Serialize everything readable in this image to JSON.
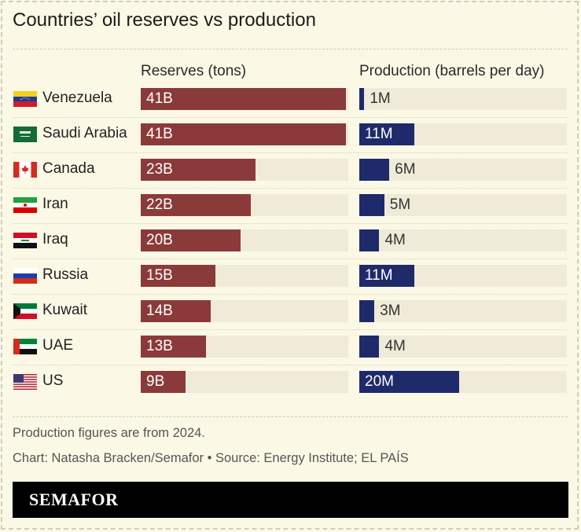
{
  "chart_data": {
    "type": "bar",
    "title": "Countries’ oil reserves vs production",
    "categories": [
      "Venezuela",
      "Saudi Arabia",
      "Canada",
      "Iran",
      "Iraq",
      "Russia",
      "Kuwait",
      "UAE",
      "US"
    ],
    "series": [
      {
        "name": "Reserves (tons)",
        "values": [
          41,
          41,
          23,
          22,
          20,
          15,
          14,
          13,
          9
        ],
        "labels": [
          "41B",
          "41B",
          "23B",
          "22B",
          "20B",
          "15B",
          "14B",
          "13B",
          "9B"
        ],
        "color": "#8b3a3a",
        "unit": "B",
        "xlim": [
          0,
          41.5
        ]
      },
      {
        "name": "Production (barrels per day)",
        "values": [
          1,
          11,
          6,
          5,
          4,
          11,
          3,
          4,
          20
        ],
        "labels": [
          "1M",
          "11M",
          "6M",
          "5M",
          "4M",
          "11M",
          "3M",
          "4M",
          "20M"
        ],
        "color": "#1f2a6b",
        "unit": "M",
        "xlim": [
          0,
          41.5
        ]
      }
    ],
    "flags": [
      "venezuela",
      "saudi-arabia",
      "canada",
      "iran",
      "iraq",
      "russia",
      "kuwait",
      "uae",
      "us"
    ],
    "grid": false
  },
  "footer": {
    "note": "Production figures are from 2024.",
    "source": "Chart: Natasha Bracken/Semafor • Source: Energy Institute; EL PAÍS",
    "brand": "SEMAFOR"
  },
  "colors": {
    "background": "#fbf8e6",
    "track": "#f0ead9",
    "reserves": "#8b3a3a",
    "production": "#1f2a6b"
  }
}
